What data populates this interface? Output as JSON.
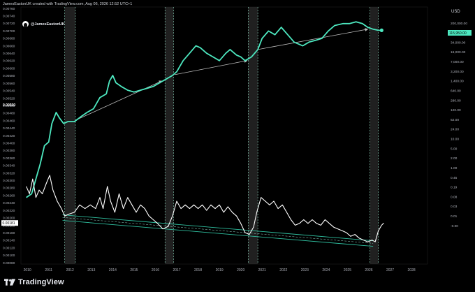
{
  "header": {
    "attribution": "JamesEastonUK created with TradingView.com, Aug 06, 2026 12:52 UTC+1"
  },
  "watermark": {
    "handle": "@JamesEastonUK"
  },
  "footer": {
    "brand": "TradingView"
  },
  "chart_data": {
    "type": "line",
    "currency_label": "USD",
    "colors": {
      "background": "#000000",
      "price_line": "#4de8c0",
      "ratio_line": "#ffffff",
      "channel": "#2fbf9f",
      "shade": "#3a3a3a",
      "arrow": "#bdbdbd"
    },
    "x_axis_years": [
      "2010",
      "2011",
      "2012",
      "2013",
      "2014",
      "2015",
      "2016",
      "2017",
      "2018",
      "2019",
      "2020",
      "2021",
      "2022",
      "2023",
      "2024",
      "2025",
      "2026",
      "2027",
      "2028"
    ],
    "left_axis_labels": [
      "0.00760",
      "0.00740",
      "0.00720",
      "0.00700",
      "0.00680",
      "0.00660",
      "0.00640",
      "0.00620",
      "0.00600",
      "0.00580",
      "0.00560",
      "0.00540",
      "0.00520",
      "0.00500",
      "0.00480",
      "0.00460",
      "0.00440",
      "0.00420",
      "0.00400",
      "0.00380",
      "0.00360",
      "0.00340",
      "0.00320",
      "0.00300",
      "0.00280",
      "0.00260",
      "0.00240",
      "0.00220",
      "0.00200",
      "0.00180",
      "0.00160",
      "0.00140",
      "0.00120",
      "0.00100",
      "0.00080"
    ],
    "left_axis_highlight": {
      "label": "0.00500"
    },
    "left_axis_current": {
      "label": "0.00181"
    },
    "right_axis_labels": [
      "200,000.00",
      "80,000.00",
      "34,000.00",
      "16,000.00",
      "7,000.00",
      "3,200.00",
      "1,400.00",
      "640.00",
      "280.00",
      "120.00",
      "52.00",
      "24.00",
      "10.00",
      "5.00",
      "2.00",
      "1.00",
      "0.45",
      "0.19",
      "0.08",
      "0.03",
      "0.01",
      "-0.00"
    ],
    "right_axis_current": {
      "label": "115,950.00"
    },
    "x_ticks": [
      2010,
      2011,
      2012,
      2013,
      2014,
      2015,
      2016,
      2017,
      2018,
      2019,
      2020,
      2021,
      2022,
      2023,
      2024,
      2025,
      2026,
      2027,
      2028
    ],
    "halving_bands": [
      [
        2011.75,
        2012.25
      ],
      [
        2016.45,
        2016.85
      ],
      [
        2020.35,
        2020.8
      ],
      [
        2026.05,
        2026.45
      ]
    ],
    "series": [
      {
        "role": "price",
        "points": [
          [
            2009.95,
            0.0025
          ],
          [
            2010.2,
            0.0026
          ],
          [
            2010.4,
            0.003
          ],
          [
            2010.6,
            0.0034
          ],
          [
            2010.8,
            0.0039
          ],
          [
            2011.0,
            0.004
          ],
          [
            2011.15,
            0.0045
          ],
          [
            2011.35,
            0.0048
          ],
          [
            2011.5,
            0.00465
          ],
          [
            2011.7,
            0.0045
          ],
          [
            2011.9,
            0.00455
          ],
          [
            2012.2,
            0.00455
          ],
          [
            2012.5,
            0.00468
          ],
          [
            2012.8,
            0.0048
          ],
          [
            2013.1,
            0.0049
          ],
          [
            2013.4,
            0.0052
          ],
          [
            2013.7,
            0.0053
          ],
          [
            2013.85,
            0.00565
          ],
          [
            2014.0,
            0.0058
          ],
          [
            2014.15,
            0.0056
          ],
          [
            2014.4,
            0.0055
          ],
          [
            2014.7,
            0.0054
          ],
          [
            2015.0,
            0.00535
          ],
          [
            2015.3,
            0.0054
          ],
          [
            2015.6,
            0.00545
          ],
          [
            2015.9,
            0.0055
          ],
          [
            2016.2,
            0.0056
          ],
          [
            2016.5,
            0.0057
          ],
          [
            2016.8,
            0.0058
          ],
          [
            2017.0,
            0.0059
          ],
          [
            2017.3,
            0.0062
          ],
          [
            2017.6,
            0.0064
          ],
          [
            2017.9,
            0.0066
          ],
          [
            2018.1,
            0.00655
          ],
          [
            2018.4,
            0.0064
          ],
          [
            2018.7,
            0.0063
          ],
          [
            2019.0,
            0.0062
          ],
          [
            2019.3,
            0.0064
          ],
          [
            2019.5,
            0.0065
          ],
          [
            2019.8,
            0.00635
          ],
          [
            2020.0,
            0.0063
          ],
          [
            2020.2,
            0.0062
          ],
          [
            2020.5,
            0.0063
          ],
          [
            2020.8,
            0.0065
          ],
          [
            2021.0,
            0.0068
          ],
          [
            2021.3,
            0.007
          ],
          [
            2021.6,
            0.0069
          ],
          [
            2021.9,
            0.0071
          ],
          [
            2022.2,
            0.0069
          ],
          [
            2022.5,
            0.0067
          ],
          [
            2022.9,
            0.0066
          ],
          [
            2023.2,
            0.0067
          ],
          [
            2023.5,
            0.00675
          ],
          [
            2023.8,
            0.0068
          ],
          [
            2024.1,
            0.007
          ],
          [
            2024.4,
            0.00715
          ],
          [
            2024.8,
            0.0072
          ],
          [
            2025.1,
            0.0072
          ],
          [
            2025.4,
            0.00725
          ],
          [
            2025.7,
            0.0072
          ],
          [
            2025.95,
            0.0071
          ],
          [
            2026.2,
            0.00705
          ],
          [
            2026.45,
            0.00702
          ],
          [
            2026.6,
            0.00702
          ]
        ]
      },
      {
        "role": "ratio",
        "points": [
          [
            2009.95,
            0.0028
          ],
          [
            2010.1,
            0.0026
          ],
          [
            2010.25,
            0.003
          ],
          [
            2010.4,
            0.0025
          ],
          [
            2010.55,
            0.0027
          ],
          [
            2010.7,
            0.0026
          ],
          [
            2010.9,
            0.0029
          ],
          [
            2011.05,
            0.0031
          ],
          [
            2011.2,
            0.0027
          ],
          [
            2011.4,
            0.0024
          ],
          [
            2011.6,
            0.0022
          ],
          [
            2011.75,
            0.002
          ],
          [
            2011.95,
            0.00205
          ],
          [
            2012.2,
            0.0021
          ],
          [
            2012.45,
            0.0023
          ],
          [
            2012.7,
            0.0022
          ],
          [
            2012.95,
            0.0023
          ],
          [
            2013.2,
            0.0022
          ],
          [
            2013.4,
            0.0025
          ],
          [
            2013.55,
            0.0022
          ],
          [
            2013.75,
            0.0028
          ],
          [
            2013.9,
            0.0024
          ],
          [
            2014.1,
            0.0021
          ],
          [
            2014.3,
            0.0026
          ],
          [
            2014.5,
            0.0022
          ],
          [
            2014.7,
            0.0025
          ],
          [
            2014.9,
            0.0023
          ],
          [
            2015.1,
            0.0021
          ],
          [
            2015.3,
            0.0023
          ],
          [
            2015.5,
            0.0022
          ],
          [
            2015.7,
            0.002
          ],
          [
            2015.9,
            0.0019
          ],
          [
            2016.1,
            0.0018
          ],
          [
            2016.35,
            0.00165
          ],
          [
            2016.6,
            0.00172
          ],
          [
            2016.8,
            0.002
          ],
          [
            2017.0,
            0.0024
          ],
          [
            2017.2,
            0.0022
          ],
          [
            2017.4,
            0.0023
          ],
          [
            2017.6,
            0.0022
          ],
          [
            2017.8,
            0.0023
          ],
          [
            2018.0,
            0.0022
          ],
          [
            2018.2,
            0.0023
          ],
          [
            2018.4,
            0.00215
          ],
          [
            2018.6,
            0.0023
          ],
          [
            2018.8,
            0.0022
          ],
          [
            2019.0,
            0.0023
          ],
          [
            2019.2,
            0.0021
          ],
          [
            2019.4,
            0.00225
          ],
          [
            2019.6,
            0.0021
          ],
          [
            2019.8,
            0.002
          ],
          [
            2020.0,
            0.0018
          ],
          [
            2020.2,
            0.00155
          ],
          [
            2020.4,
            0.0015
          ],
          [
            2020.6,
            0.0017
          ],
          [
            2020.75,
            0.0021
          ],
          [
            2020.95,
            0.0025
          ],
          [
            2021.15,
            0.0024
          ],
          [
            2021.35,
            0.0023
          ],
          [
            2021.55,
            0.0024
          ],
          [
            2021.75,
            0.0022
          ],
          [
            2021.95,
            0.0023
          ],
          [
            2022.15,
            0.0021
          ],
          [
            2022.35,
            0.0019
          ],
          [
            2022.55,
            0.00175
          ],
          [
            2022.75,
            0.0018
          ],
          [
            2022.95,
            0.0019
          ],
          [
            2023.15,
            0.0018
          ],
          [
            2023.35,
            0.0019
          ],
          [
            2023.55,
            0.0018
          ],
          [
            2023.75,
            0.00175
          ],
          [
            2023.95,
            0.0019
          ],
          [
            2024.15,
            0.0018
          ],
          [
            2024.35,
            0.0017
          ],
          [
            2024.55,
            0.00165
          ],
          [
            2024.75,
            0.0016
          ],
          [
            2024.95,
            0.00155
          ],
          [
            2025.15,
            0.00145
          ],
          [
            2025.35,
            0.0015
          ],
          [
            2025.55,
            0.0014
          ],
          [
            2025.75,
            0.00135
          ],
          [
            2025.95,
            0.0013
          ],
          [
            2026.15,
            0.00135
          ],
          [
            2026.3,
            0.0013
          ],
          [
            2026.45,
            0.0016
          ],
          [
            2026.6,
            0.00175
          ],
          [
            2026.7,
            0.00181
          ]
        ]
      }
    ],
    "channel_lines": [
      [
        [
          2011.65,
          0.00203
        ],
        [
          2026.2,
          0.00133
        ]
      ],
      [
        [
          2011.65,
          0.00188
        ],
        [
          2026.2,
          0.00118
        ]
      ],
      [
        [
          2011.65,
          0.00196
        ],
        [
          2026.2,
          0.00126
        ]
      ]
    ],
    "arrows": [
      [
        [
          2012.3,
          0.0046
        ],
        [
          2016.3,
          0.00565
        ]
      ],
      [
        [
          2016.9,
          0.00582
        ],
        [
          2020.3,
          0.0062
        ]
      ],
      [
        [
          2020.8,
          0.0065
        ],
        [
          2025.95,
          0.00705
        ]
      ]
    ]
  }
}
